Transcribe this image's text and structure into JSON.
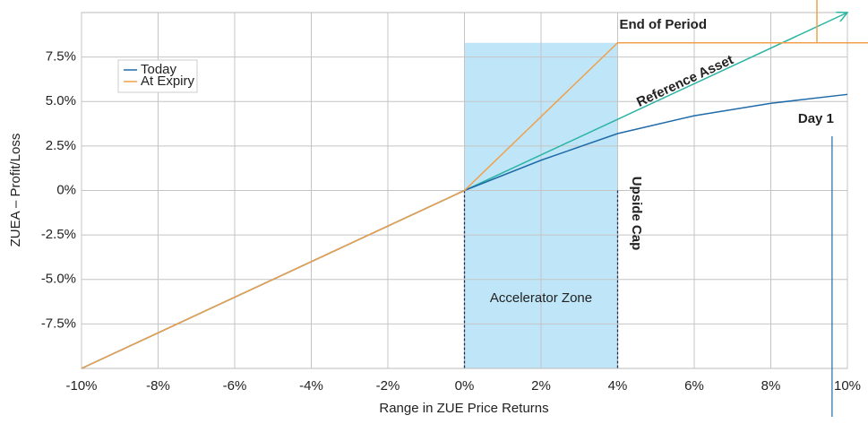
{
  "chart_data": {
    "type": "line",
    "xlabel": "Range in ZUE Price Returns",
    "ylabel": "ZUEA – Profit/Loss",
    "xlim": [
      -10,
      10
    ],
    "ylim": [
      -10,
      10
    ],
    "xticks": [
      {
        "value": -10,
        "label": "-10%"
      },
      {
        "value": -8,
        "label": "-8%"
      },
      {
        "value": -6,
        "label": "-6%"
      },
      {
        "value": -4,
        "label": "-4%"
      },
      {
        "value": -2,
        "label": "-2%"
      },
      {
        "value": 0,
        "label": "0%"
      },
      {
        "value": 2,
        "label": "2%"
      },
      {
        "value": 4,
        "label": "4%"
      },
      {
        "value": 6,
        "label": "6%"
      },
      {
        "value": 8,
        "label": "8%"
      },
      {
        "value": 10,
        "label": "10%"
      }
    ],
    "yticks": [
      {
        "value": -7.5,
        "label": "-7.5%"
      },
      {
        "value": -5,
        "label": "-5.0%"
      },
      {
        "value": -2.5,
        "label": "-2.5%"
      },
      {
        "value": 0,
        "label": "0%"
      },
      {
        "value": 2.5,
        "label": "2.5%"
      },
      {
        "value": 5,
        "label": "5.0%"
      },
      {
        "value": 7.5,
        "label": "7.5%"
      }
    ],
    "grid": true,
    "legend": "upper left",
    "series": [
      {
        "name": "Today",
        "color": "#1f6aa8",
        "x": [
          -10,
          -8,
          -6,
          -4,
          -2,
          0,
          2,
          4,
          6,
          8,
          10
        ],
        "values": [
          -10,
          -8,
          -6,
          -4,
          -2,
          0,
          1.7,
          3.2,
          4.2,
          4.9,
          5.4
        ]
      },
      {
        "name": "At Expiry",
        "color": "#f0a04b",
        "x": [
          -10,
          0,
          4,
          10
        ],
        "values": [
          -10,
          0,
          8.3,
          8.3
        ]
      }
    ],
    "reference": {
      "label": "Reference Asset",
      "color": "#2bb3a3",
      "x": [
        -10,
        10
      ],
      "values": [
        -10,
        10
      ]
    },
    "zone": {
      "label": "Accelerator Zone",
      "x": [
        0,
        4
      ]
    },
    "cap_label": "Upside Cap",
    "end_label": "End of Period",
    "day_marker": {
      "label": "Day 1",
      "x": 9.6
    }
  }
}
